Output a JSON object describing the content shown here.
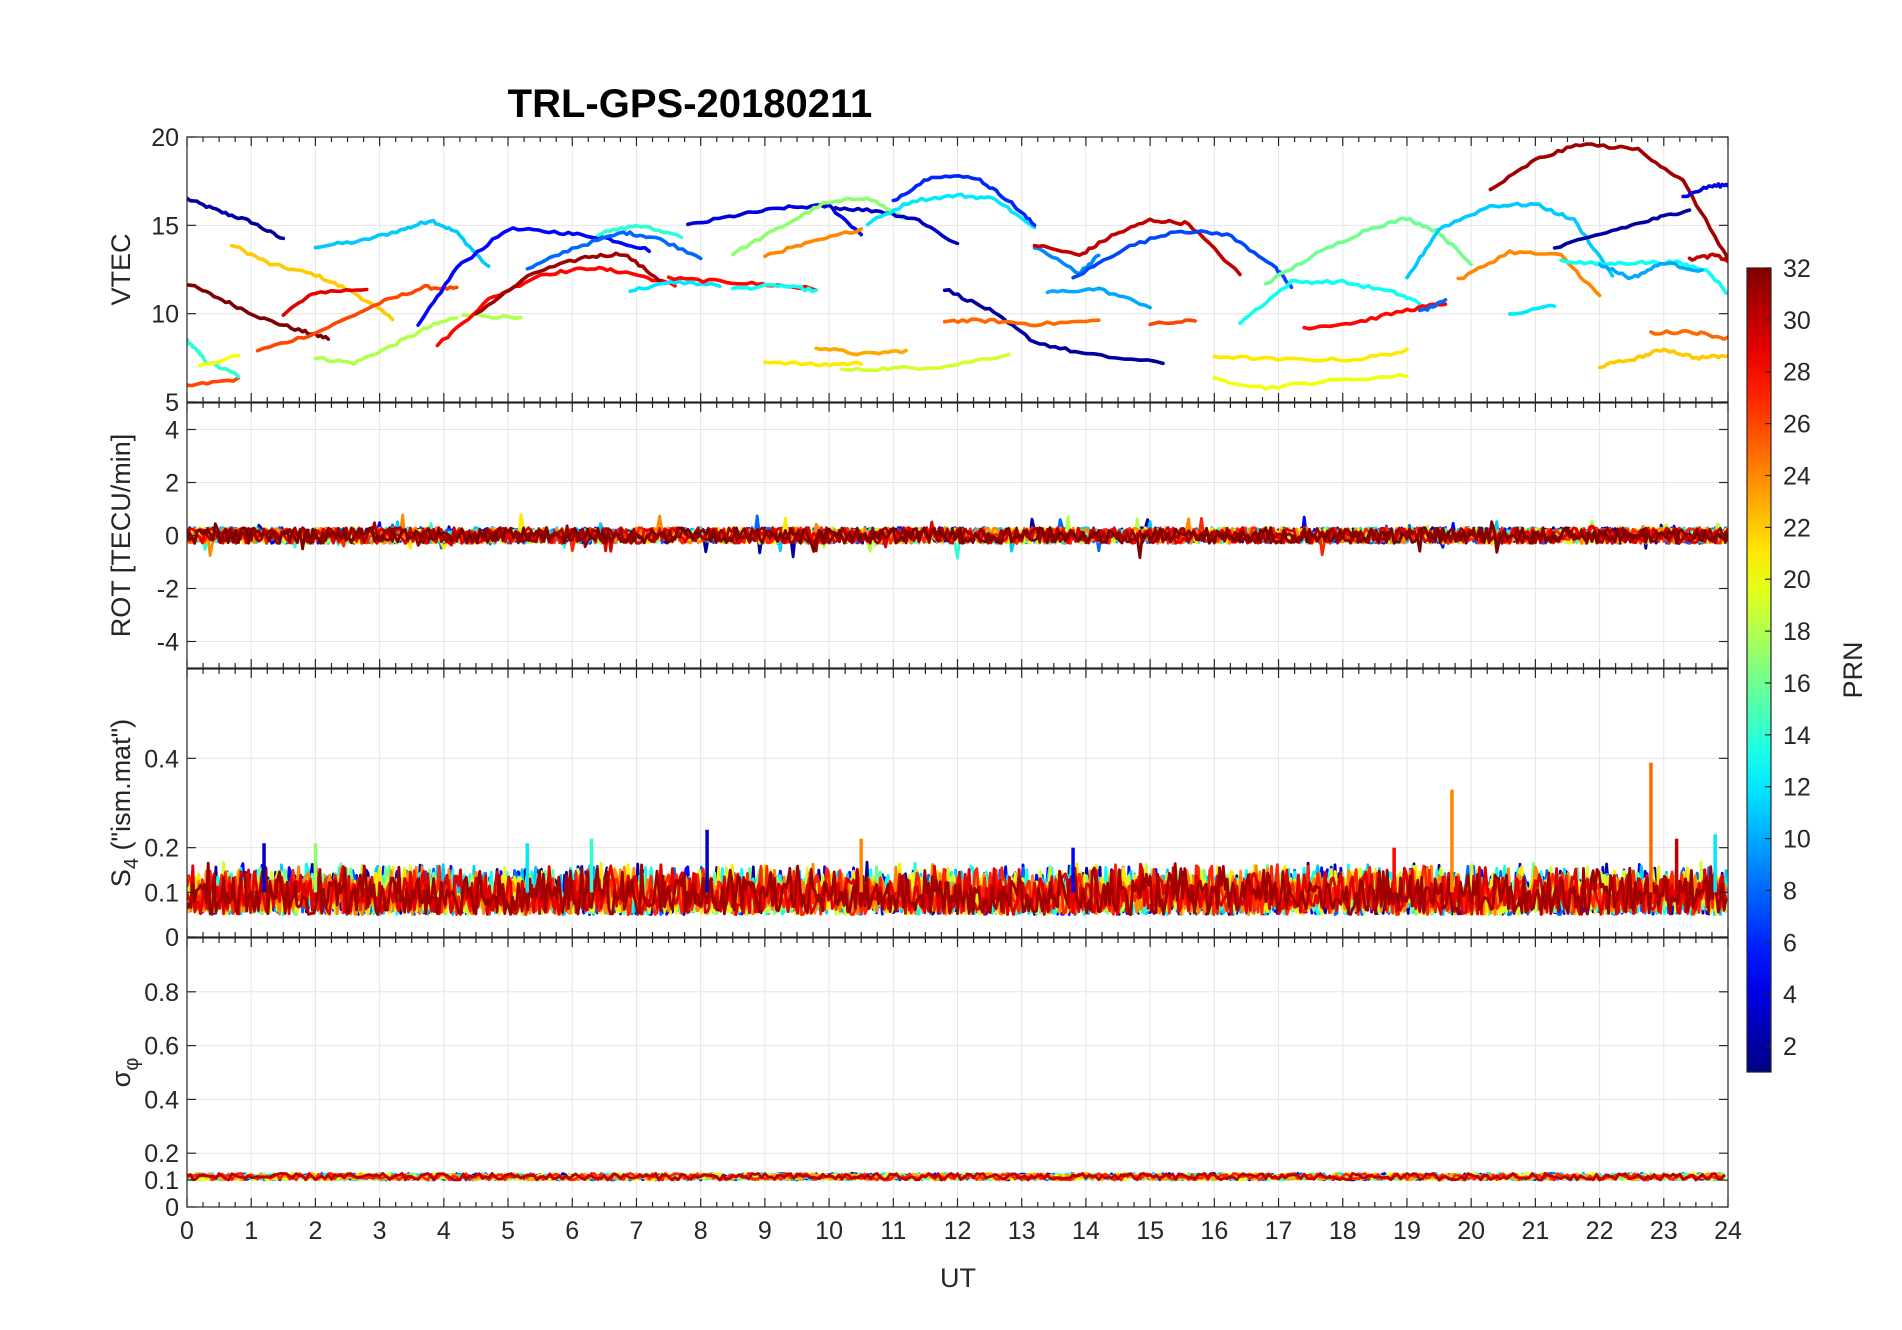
{
  "chart_data": {
    "type": "line",
    "title": "TRL-GPS-20180211",
    "xlabel": "UT",
    "xlim": [
      0,
      24
    ],
    "xticks": [
      "0",
      "1",
      "2",
      "3",
      "4",
      "5",
      "6",
      "7",
      "8",
      "9",
      "10",
      "11",
      "12",
      "13",
      "14",
      "15",
      "16",
      "17",
      "18",
      "19",
      "20",
      "21",
      "22",
      "23",
      "24"
    ],
    "colorbar": {
      "label": "PRN",
      "range": [
        1,
        32
      ],
      "ticks": [
        "2",
        "4",
        "6",
        "8",
        "10",
        "12",
        "14",
        "16",
        "18",
        "20",
        "22",
        "24",
        "26",
        "28",
        "30",
        "32"
      ],
      "colormap": "jet"
    },
    "panels": [
      {
        "id": "vtec",
        "ylabel": "VTEC",
        "ylim": [
          5,
          20
        ],
        "yticks": [
          "5",
          "10",
          "15",
          "20"
        ],
        "series": [
          {
            "prn": 2,
            "x": [
              0,
              0.5,
              1,
              1.5
            ],
            "y": [
              16.5,
              15.8,
              15.2,
              14.2
            ]
          },
          {
            "prn": 11,
            "x": [
              2,
              2.7,
              3.4,
              3.8,
              4.2,
              4.7
            ],
            "y": [
              13.8,
              14.1,
              14.8,
              15.3,
              14.6,
              12.6
            ]
          },
          {
            "prn": 22,
            "x": [
              0.7,
              1.3,
              2,
              2.6,
              3.2
            ],
            "y": [
              13.9,
              12.8,
              12.2,
              11.2,
              9.7
            ]
          },
          {
            "prn": 29,
            "x": [
              1.5,
              2,
              2.8
            ],
            "y": [
              10,
              11.2,
              11.4
            ]
          },
          {
            "prn": 32,
            "x": [
              0,
              0.6,
              1.2,
              1.8,
              2.2
            ],
            "y": [
              11.7,
              10.7,
              9.7,
              9,
              8.6
            ]
          },
          {
            "prn": 26,
            "x": [
              1.1,
              2,
              3,
              3.7,
              4.2
            ],
            "y": [
              7.9,
              8.9,
              10.6,
              11.5,
              11.4
            ]
          },
          {
            "prn": 26,
            "x": [
              0,
              0.8
            ],
            "y": [
              5.9,
              6.3
            ]
          },
          {
            "prn": 14,
            "x": [
              0,
              0.3,
              0.8
            ],
            "y": [
              8.5,
              7.3,
              6.5
            ]
          },
          {
            "prn": 20,
            "x": [
              0.2,
              0.8
            ],
            "y": [
              7,
              7.7
            ]
          },
          {
            "prn": 18,
            "x": [
              2,
              2.6,
              3.2,
              3.8,
              4.2
            ],
            "y": [
              7.5,
              7.2,
              8.2,
              9.3,
              9.8
            ]
          },
          {
            "prn": 18,
            "x": [
              4.3,
              5.2
            ],
            "y": [
              10,
              9.7
            ]
          },
          {
            "prn": 5,
            "x": [
              3.6,
              4.2,
              5,
              5.8,
              6.5,
              7.2
            ],
            "y": [
              9.3,
              12.6,
              14.8,
              14.6,
              14.3,
              13.6
            ]
          },
          {
            "prn": 28,
            "x": [
              3.9,
              4.7,
              5.5,
              6.3,
              6.9,
              7.6
            ],
            "y": [
              8.2,
              10.8,
              12.2,
              12.6,
              12.3,
              11.6
            ]
          },
          {
            "prn": 31,
            "x": [
              4.5,
              5.4,
              6.2,
              6.8,
              7.4
            ],
            "y": [
              10,
              12.3,
              13.2,
              13.4,
              11.8
            ]
          },
          {
            "prn": 8,
            "x": [
              5.3,
              6,
              6.8,
              7.3,
              8
            ],
            "y": [
              12.5,
              13.7,
              14.6,
              14.3,
              13.2
            ]
          },
          {
            "prn": 14,
            "x": [
              6.4,
              7,
              7.7
            ],
            "y": [
              14.5,
              15,
              14.4
            ]
          },
          {
            "prn": 12,
            "x": [
              6.9,
              7.6,
              8.3
            ],
            "y": [
              11.3,
              11.8,
              11.6
            ]
          },
          {
            "prn": 28,
            "x": [
              7.5,
              8.4,
              9.2,
              9.8
            ],
            "y": [
              12,
              11.8,
              11.6,
              11.4
            ]
          },
          {
            "prn": 13,
            "x": [
              8.5,
              9.2,
              9.8
            ],
            "y": [
              11.4,
              11.6,
              11.3
            ]
          },
          {
            "prn": 4,
            "x": [
              7.8,
              8.6,
              9.3,
              10,
              10.5
            ],
            "y": [
              15,
              15.6,
              16,
              16.1,
              14.5
            ]
          },
          {
            "prn": 17,
            "x": [
              8.5,
              9.2,
              9.9,
              10.6,
              11.2
            ],
            "y": [
              13.4,
              14.8,
              16.2,
              16.6,
              15.3
            ]
          },
          {
            "prn": 24,
            "x": [
              9,
              9.7,
              10.5
            ],
            "y": [
              13.3,
              14,
              14.8
            ]
          },
          {
            "prn": 3,
            "x": [
              10.1,
              10.8,
              11.4,
              12
            ],
            "y": [
              16,
              15.8,
              15.3,
              13.9
            ]
          },
          {
            "prn": 12,
            "x": [
              10.6,
              11.3,
              12,
              12.6,
              13.2
            ],
            "y": [
              15.1,
              16.4,
              16.7,
              16.5,
              14.8
            ]
          },
          {
            "prn": 6,
            "x": [
              11,
              11.6,
              12.3,
              12.8,
              13.2
            ],
            "y": [
              16.4,
              17.8,
              17.7,
              16.4,
              15
            ]
          },
          {
            "prn": 21,
            "x": [
              9,
              9.8,
              10.5
            ],
            "y": [
              7.3,
              7.1,
              7.2
            ]
          },
          {
            "prn": 23,
            "x": [
              9.8,
              10.5,
              11.2
            ],
            "y": [
              8.1,
              7.7,
              7.9
            ]
          },
          {
            "prn": 19,
            "x": [
              10.2,
              11,
              11.8,
              12.8
            ],
            "y": [
              6.8,
              6.9,
              7,
              7.7
            ]
          },
          {
            "prn": 2,
            "x": [
              11.8,
              12.5,
              13.2,
              14,
              15.2
            ],
            "y": [
              11.4,
              10.2,
              8.4,
              7.7,
              7.2
            ]
          },
          {
            "prn": 25,
            "x": [
              11.8,
              12.5,
              13.2,
              14.2
            ],
            "y": [
              9.6,
              9.6,
              9.4,
              9.6
            ]
          },
          {
            "prn": 9,
            "x": [
              13.2,
              13.9,
              14.2
            ],
            "y": [
              13.8,
              12.3,
              13.3
            ]
          },
          {
            "prn": 30,
            "x": [
              13.2,
              13.9,
              14.4,
              15,
              15.6,
              16.4
            ],
            "y": [
              13.9,
              13.3,
              14.4,
              15.3,
              15.1,
              12.2
            ]
          },
          {
            "prn": 7,
            "x": [
              13.8,
              14.6,
              15.4,
              16.2,
              16.9,
              17.2
            ],
            "y": [
              12,
              13.7,
              14.7,
              14.5,
              12.8,
              11.5
            ]
          },
          {
            "prn": 10,
            "x": [
              13.4,
              14.2,
              15
            ],
            "y": [
              11.2,
              11.4,
              10.4
            ]
          },
          {
            "prn": 26,
            "x": [
              15,
              15.7
            ],
            "y": [
              9.4,
              9.6
            ]
          },
          {
            "prn": 21,
            "x": [
              16,
              17,
              18.2,
              19
            ],
            "y": [
              7.6,
              7.4,
              7.4,
              7.9
            ]
          },
          {
            "prn": 20,
            "x": [
              16,
              16.8,
              17.8,
              19
            ],
            "y": [
              6.3,
              5.8,
              6.2,
              6.5
            ]
          },
          {
            "prn": 13,
            "x": [
              16.4,
              17.2,
              18,
              18.8,
              19.2
            ],
            "y": [
              9.5,
              11.8,
              11.8,
              11.2,
              10.6
            ]
          },
          {
            "prn": 16,
            "x": [
              16.8,
              17.6,
              18.4,
              19,
              19.5,
              20
            ],
            "y": [
              11.7,
              13.4,
              14.8,
              15.4,
              14.6,
              12.8
            ]
          },
          {
            "prn": 28,
            "x": [
              17.4,
              18.2,
              19,
              19.6
            ],
            "y": [
              9.2,
              9.5,
              10.2,
              10.6
            ]
          },
          {
            "prn": 8,
            "x": [
              19.2,
              19.6
            ],
            "y": [
              10.1,
              10.7
            ]
          },
          {
            "prn": 11,
            "x": [
              19,
              19.5,
              20.3,
              21,
              21.6,
              22.2
            ],
            "y": [
              12,
              14.8,
              16.1,
              16.2,
              15.3,
              12.2
            ]
          },
          {
            "prn": 24,
            "x": [
              19.8,
              20.6,
              21.4,
              22
            ],
            "y": [
              11.9,
              13.5,
              13.3,
              11
            ]
          },
          {
            "prn": 31,
            "x": [
              20.3,
              21,
              21.7,
              22.6,
              23.3,
              24
            ],
            "y": [
              17,
              18.7,
              19.6,
              19.3,
              17.5,
              13.1
            ]
          },
          {
            "prn": 2,
            "x": [
              21.3,
              22.2,
              22.9,
              23.4
            ],
            "y": [
              13.7,
              14.7,
              15.4,
              15.9
            ]
          },
          {
            "prn": 4,
            "x": [
              23.3,
              23.7,
              24
            ],
            "y": [
              16.6,
              17.2,
              17.3
            ]
          },
          {
            "prn": 13,
            "x": [
              21.4,
              22,
              22.6,
              23.2,
              23.7,
              24
            ],
            "y": [
              13,
              12.8,
              12.9,
              12.9,
              12.4,
              11.1
            ]
          },
          {
            "prn": 10,
            "x": [
              22,
              22.5,
              23,
              23.6
            ],
            "y": [
              12.8,
              12,
              12.9,
              12.4
            ]
          },
          {
            "prn": 30,
            "x": [
              23.4,
              23.8,
              24
            ],
            "y": [
              13.1,
              13.3,
              13
            ]
          },
          {
            "prn": 12,
            "x": [
              20.6,
              21.3
            ],
            "y": [
              9.9,
              10.5
            ]
          },
          {
            "prn": 22,
            "x": [
              22,
              22.6,
              23,
              23.5,
              24
            ],
            "y": [
              7,
              7.5,
              8,
              7.5,
              7.6
            ]
          },
          {
            "prn": 25,
            "x": [
              22.8,
              23.4,
              24
            ],
            "y": [
              8.9,
              9,
              8.6
            ]
          }
        ]
      },
      {
        "id": "rot",
        "ylabel": "ROT [TECU/min]",
        "ylim": [
          -5,
          5
        ],
        "yticks": [
          "-4",
          "-2",
          "0",
          "2",
          "4"
        ],
        "band": {
          "center": 0,
          "typical_amplitude": 0.4,
          "max_excursion": 1.0
        }
      },
      {
        "id": "s4",
        "ylabel": "S4 (\"ism.mat\")",
        "ylabel_main": "S",
        "ylabel_sub": "4",
        "ylabel_rest": " (\"ism.mat\")",
        "ylim": [
          0,
          0.6
        ],
        "yticks": [
          "0",
          "0.1",
          "0.2",
          "0.4"
        ],
        "band": {
          "low": 0.05,
          "high": 0.15
        },
        "spikes": [
          {
            "x": 1.2,
            "y": 0.21
          },
          {
            "x": 2.0,
            "y": 0.21
          },
          {
            "x": 5.3,
            "y": 0.21
          },
          {
            "x": 6.3,
            "y": 0.22
          },
          {
            "x": 8.1,
            "y": 0.24
          },
          {
            "x": 10.5,
            "y": 0.22
          },
          {
            "x": 13.8,
            "y": 0.2
          },
          {
            "x": 18.8,
            "y": 0.2
          },
          {
            "x": 19.7,
            "y": 0.33
          },
          {
            "x": 22.8,
            "y": 0.39
          },
          {
            "x": 23.2,
            "y": 0.22
          },
          {
            "x": 23.8,
            "y": 0.23
          }
        ]
      },
      {
        "id": "sigma_phi",
        "ylabel": "σφ",
        "ylabel_main": "σ",
        "ylabel_sub": "φ",
        "ylim": [
          0,
          1
        ],
        "yticks": [
          "0",
          "0.1",
          "0.2",
          "0.4",
          "0.6",
          "0.8"
        ],
        "band": {
          "low": 0.1,
          "high": 0.125
        }
      }
    ]
  }
}
